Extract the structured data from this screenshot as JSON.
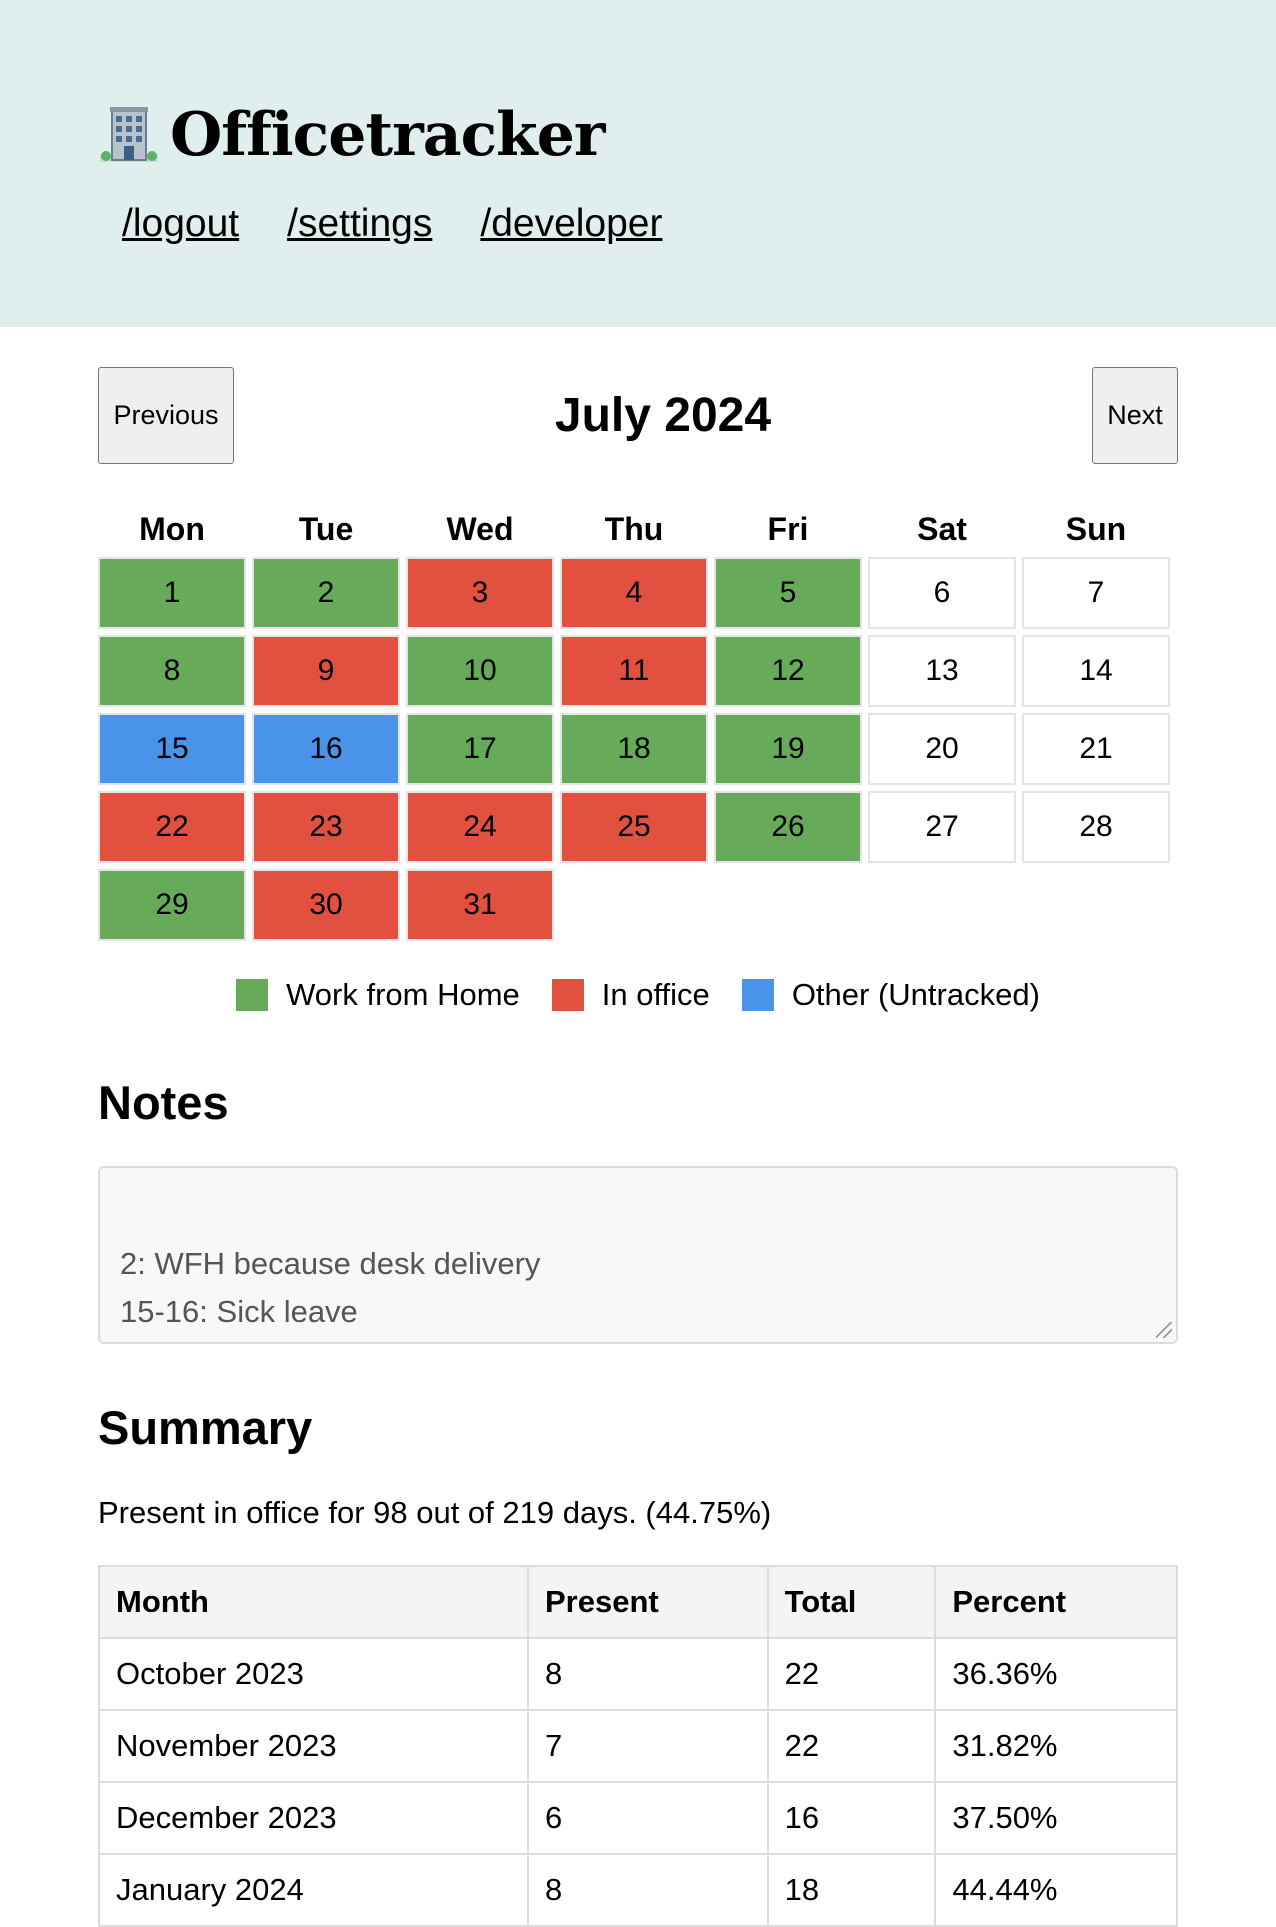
{
  "app": {
    "title": "Officetracker",
    "icon": "office-building-icon",
    "nav": [
      "/logout",
      "/settings",
      "/developer"
    ]
  },
  "calendar": {
    "previous_label": "Previous",
    "next_label": "Next",
    "month_title": "July 2024",
    "weekdays": [
      "Mon",
      "Tue",
      "Wed",
      "Thu",
      "Fri",
      "Sat",
      "Sun"
    ],
    "leading_blanks": 0,
    "days": [
      {
        "n": "1",
        "s": "wfh"
      },
      {
        "n": "2",
        "s": "wfh"
      },
      {
        "n": "3",
        "s": "office"
      },
      {
        "n": "4",
        "s": "office"
      },
      {
        "n": "5",
        "s": "wfh"
      },
      {
        "n": "6",
        "s": "none"
      },
      {
        "n": "7",
        "s": "none"
      },
      {
        "n": "8",
        "s": "wfh"
      },
      {
        "n": "9",
        "s": "office"
      },
      {
        "n": "10",
        "s": "wfh"
      },
      {
        "n": "11",
        "s": "office"
      },
      {
        "n": "12",
        "s": "wfh"
      },
      {
        "n": "13",
        "s": "none"
      },
      {
        "n": "14",
        "s": "none"
      },
      {
        "n": "15",
        "s": "other"
      },
      {
        "n": "16",
        "s": "other"
      },
      {
        "n": "17",
        "s": "wfh"
      },
      {
        "n": "18",
        "s": "wfh"
      },
      {
        "n": "19",
        "s": "wfh"
      },
      {
        "n": "20",
        "s": "none"
      },
      {
        "n": "21",
        "s": "none"
      },
      {
        "n": "22",
        "s": "office"
      },
      {
        "n": "23",
        "s": "office"
      },
      {
        "n": "24",
        "s": "office"
      },
      {
        "n": "25",
        "s": "office"
      },
      {
        "n": "26",
        "s": "wfh"
      },
      {
        "n": "27",
        "s": "none"
      },
      {
        "n": "28",
        "s": "none"
      },
      {
        "n": "29",
        "s": "wfh"
      },
      {
        "n": "30",
        "s": "office"
      },
      {
        "n": "31",
        "s": "office"
      }
    ],
    "colors": {
      "wfh": "#67ab5a",
      "office": "#e2513f",
      "other": "#4a93ea"
    }
  },
  "legend": [
    {
      "label": "Work from Home",
      "color": "#67ab5a"
    },
    {
      "label": "In office",
      "color": "#e2513f"
    },
    {
      "label": "Other (Untracked)",
      "color": "#4a93ea"
    }
  ],
  "notes": {
    "title": "Notes",
    "value": "2: WFH because desk delivery\n15-16: Sick leave"
  },
  "summary": {
    "title": "Summary",
    "text": "Present in office for 98 out of 219 days. (44.75%)",
    "columns": [
      "Month",
      "Present",
      "Total",
      "Percent"
    ],
    "rows": [
      [
        "October 2023",
        "8",
        "22",
        "36.36%"
      ],
      [
        "November 2023",
        "7",
        "22",
        "31.82%"
      ],
      [
        "December 2023",
        "6",
        "16",
        "37.50%"
      ],
      [
        "January 2024",
        "8",
        "18",
        "44.44%"
      ]
    ]
  }
}
